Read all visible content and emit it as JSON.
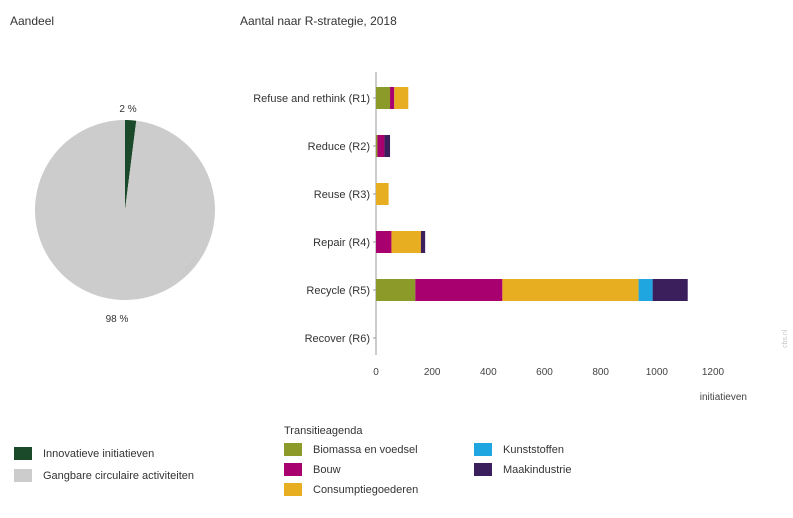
{
  "chart_data": [
    {
      "type": "pie",
      "title": "Aandeel",
      "slices": [
        {
          "label": "Innovatieve initiatieven",
          "value": 2,
          "display": "2 %",
          "color": "#1a4a2a"
        },
        {
          "label": "Gangbare circulaire activiteiten",
          "value": 98,
          "display": "98 %",
          "color": "#cccccc"
        }
      ],
      "watermark": "cbs.nl"
    },
    {
      "type": "bar",
      "orientation": "horizontal",
      "stacked": true,
      "title": "Aantal naar R-strategie, 2018",
      "xlabel": "initiatieven",
      "xlim": [
        0,
        1200
      ],
      "xticks": [
        0,
        200,
        400,
        600,
        800,
        1000,
        1200
      ],
      "categories": [
        "Refuse and rethink (R1)",
        "Reduce (R2)",
        "Reuse (R3)",
        "Repair (R4)",
        "Recycle (R5)",
        "Recover (R6)"
      ],
      "series": [
        {
          "name": "Biomassa en voedsel",
          "color": "#8c9a2a",
          "values": [
            50,
            5,
            0,
            0,
            140,
            0
          ]
        },
        {
          "name": "Bouw",
          "color": "#a8006e",
          "values": [
            15,
            25,
            0,
            55,
            310,
            0
          ]
        },
        {
          "name": "Consumptiegoederen",
          "color": "#e8ae22",
          "values": [
            50,
            0,
            45,
            105,
            485,
            0
          ]
        },
        {
          "name": "Kunststoffen",
          "color": "#1fa6e0",
          "values": [
            0,
            0,
            0,
            0,
            50,
            0
          ]
        },
        {
          "name": "Maakindustrie",
          "color": "#3a1f5c",
          "values": [
            0,
            20,
            0,
            15,
            125,
            0
          ]
        }
      ],
      "watermark": "cbs.nl"
    }
  ],
  "legend_pie": [
    {
      "label": "Innovatieve initiatieven",
      "color": "#1a4a2a"
    },
    {
      "label": "Gangbare circulaire activiteiten",
      "color": "#cccccc"
    }
  ],
  "legend_bar": {
    "title": "Transitieagenda",
    "items": [
      {
        "label": "Biomassa en voedsel",
        "color": "#8c9a2a"
      },
      {
        "label": "Kunststoffen",
        "color": "#1fa6e0"
      },
      {
        "label": "Bouw",
        "color": "#a8006e"
      },
      {
        "label": "Maakindustrie",
        "color": "#3a1f5c"
      },
      {
        "label": "Consumptiegoederen",
        "color": "#e8ae22"
      }
    ]
  }
}
